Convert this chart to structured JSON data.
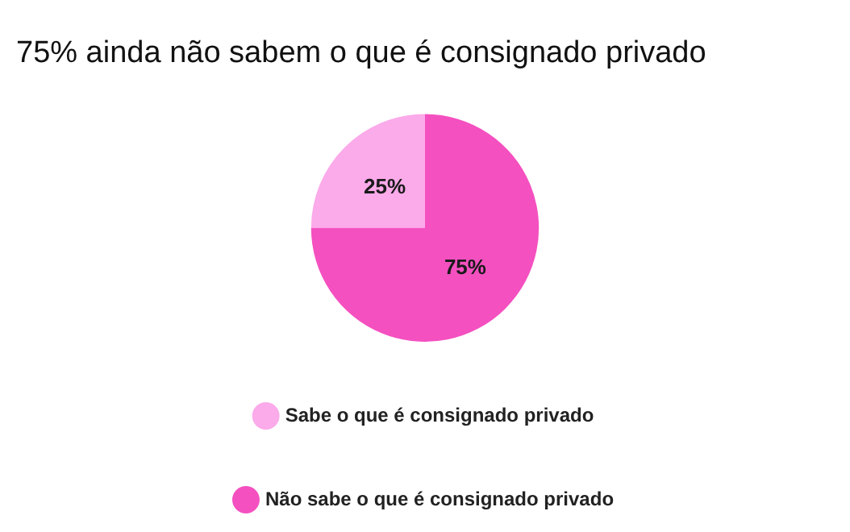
{
  "chart_data": {
    "type": "pie",
    "title": "75% ainda não sabem o que é consignado privado",
    "categories": [
      "Sabe o que é consignado privado",
      "Não sabe o que é consignado privado"
    ],
    "values": [
      25,
      75
    ],
    "colors": [
      "#fbaaea",
      "#f450c0"
    ],
    "value_labels": [
      "25%",
      "75%"
    ],
    "legend": "bottom"
  }
}
